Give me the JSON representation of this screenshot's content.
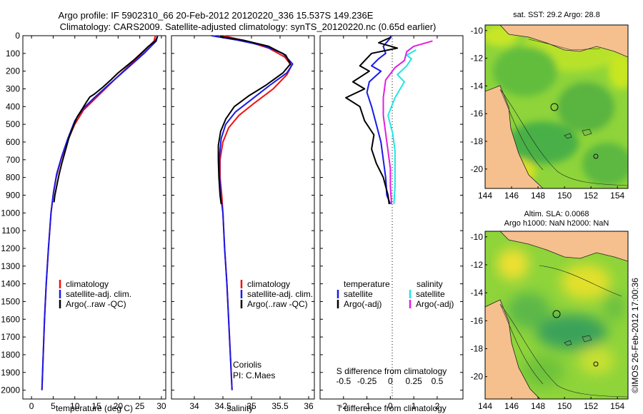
{
  "title": {
    "line1": "Argo profile: IF 5902310_66 20-Feb-2012 20120220_336 15.537S 149.236E",
    "line2": "Climatology: CARS2009. Satellite-adjusted climatology: synTS_20120220.nc (0.65d earlier)"
  },
  "colors": {
    "climatology": "#e11",
    "satellite": "#1a1ae6",
    "argo": "#000000",
    "sat_salinity": "#22e6e6",
    "argo_salinity": "#e21ee2",
    "land": "#f5c08e"
  },
  "chart_data": [
    {
      "id": "temperature",
      "type": "line",
      "xlabel": "temperature (deg C)",
      "ylabel": "",
      "xlim": [
        -2,
        31
      ],
      "ylim": [
        2050,
        0
      ],
      "xticks": [
        "0",
        "5",
        "10",
        "15",
        "20",
        "25",
        "30"
      ],
      "yticks": [
        "0",
        "100",
        "200",
        "300",
        "400",
        "500",
        "600",
        "700",
        "800",
        "900",
        "1000",
        "1100",
        "1200",
        "1300",
        "1400",
        "1500",
        "1600",
        "1700",
        "1800",
        "1900",
        "2000"
      ],
      "legend": [
        "climatology",
        "satellite-adj. clim.",
        "Argo(..raw -QC)"
      ],
      "series": [
        {
          "name": "climatology",
          "color": "#e11",
          "points": [
            [
              28.6,
              0
            ],
            [
              28.3,
              30
            ],
            [
              25.5,
              100
            ],
            [
              22.5,
              170
            ],
            [
              19.5,
              240
            ],
            [
              17,
              300
            ],
            [
              14.5,
              360
            ],
            [
              12,
              420
            ],
            [
              10,
              500
            ],
            [
              8.2,
              600
            ],
            [
              6.8,
              700
            ],
            [
              5.7,
              800
            ],
            [
              5,
              900
            ],
            [
              4.5,
              1000
            ],
            [
              3.9,
              1200
            ],
            [
              3.4,
              1400
            ],
            [
              3,
              1600
            ],
            [
              2.7,
              1800
            ],
            [
              2.4,
              2000
            ]
          ]
        },
        {
          "name": "satellite",
          "color": "#1a1ae6",
          "points": [
            [
              29.1,
              0
            ],
            [
              28.8,
              30
            ],
            [
              26,
              100
            ],
            [
              23,
              165
            ],
            [
              20,
              230
            ],
            [
              17.2,
              290
            ],
            [
              14.5,
              350
            ],
            [
              12,
              410
            ],
            [
              10,
              480
            ],
            [
              8.4,
              580
            ],
            [
              7,
              680
            ],
            [
              5.8,
              780
            ],
            [
              5.1,
              880
            ],
            [
              4.5,
              1000
            ],
            [
              3.9,
              1200
            ],
            [
              3.4,
              1400
            ],
            [
              3,
              1600
            ],
            [
              2.7,
              1800
            ],
            [
              2.4,
              2000
            ]
          ]
        },
        {
          "name": "Argo",
          "color": "#000000",
          "points": [
            [
              29.1,
              5
            ],
            [
              28.6,
              30
            ],
            [
              27,
              60
            ],
            [
              25.5,
              95
            ],
            [
              23.5,
              140
            ],
            [
              21.5,
              180
            ],
            [
              20,
              210
            ],
            [
              18.3,
              250
            ],
            [
              16.5,
              290
            ],
            [
              14.5,
              330
            ],
            [
              13.5,
              345
            ],
            [
              12.8,
              370
            ],
            [
              11.8,
              410
            ],
            [
              10.5,
              460
            ],
            [
              9.5,
              520
            ],
            [
              8.6,
              580
            ],
            [
              7.8,
              650
            ],
            [
              7,
              720
            ],
            [
              6.3,
              790
            ],
            [
              5.8,
              850
            ],
            [
              5.4,
              900
            ],
            [
              5.2,
              940
            ]
          ]
        }
      ]
    },
    {
      "id": "salinity",
      "type": "line",
      "xlabel": "salinity",
      "ylabel": "",
      "xlim": [
        33.6,
        36.1
      ],
      "ylim": [
        2050,
        0
      ],
      "xticks": [
        "34",
        "34.5",
        "35",
        "35.5",
        "36"
      ],
      "legend": [
        "climatology",
        "satellite-adj. clim.",
        "Argo(..raw -QC)"
      ],
      "annotations": [
        "Coriolis",
        "PI: C.Maes"
      ],
      "series": [
        {
          "name": "climatology",
          "color": "#e11",
          "points": [
            [
              34.5,
              0
            ],
            [
              34.9,
              30
            ],
            [
              35.3,
              70
            ],
            [
              35.58,
              120
            ],
            [
              35.7,
              170
            ],
            [
              35.62,
              220
            ],
            [
              35.38,
              300
            ],
            [
              35.05,
              380
            ],
            [
              34.78,
              450
            ],
            [
              34.6,
              520
            ],
            [
              34.5,
              600
            ],
            [
              34.45,
              700
            ],
            [
              34.45,
              800
            ],
            [
              34.48,
              900
            ],
            [
              34.5,
              1000
            ],
            [
              34.53,
              1200
            ],
            [
              34.57,
              1400
            ],
            [
              34.6,
              1600
            ],
            [
              34.63,
              1800
            ],
            [
              34.66,
              2000
            ]
          ]
        },
        {
          "name": "satellite",
          "color": "#1a1ae6",
          "points": [
            [
              34.3,
              0
            ],
            [
              34.75,
              25
            ],
            [
              35.2,
              55
            ],
            [
              35.55,
              100
            ],
            [
              35.72,
              160
            ],
            [
              35.62,
              210
            ],
            [
              35.32,
              280
            ],
            [
              35,
              360
            ],
            [
              34.72,
              430
            ],
            [
              34.55,
              500
            ],
            [
              34.47,
              580
            ],
            [
              34.44,
              680
            ],
            [
              34.44,
              780
            ],
            [
              34.46,
              900
            ],
            [
              34.5,
              1000
            ],
            [
              34.53,
              1200
            ],
            [
              34.57,
              1400
            ],
            [
              34.6,
              1600
            ],
            [
              34.63,
              1800
            ],
            [
              34.66,
              2000
            ]
          ]
        },
        {
          "name": "Argo",
          "color": "#000000",
          "points": [
            [
              34.45,
              5
            ],
            [
              34.85,
              25
            ],
            [
              35.3,
              60
            ],
            [
              35.6,
              110
            ],
            [
              35.68,
              160
            ],
            [
              35.55,
              210
            ],
            [
              35.25,
              280
            ],
            [
              34.95,
              340
            ],
            [
              34.7,
              400
            ],
            [
              34.55,
              470
            ],
            [
              34.46,
              540
            ],
            [
              34.42,
              620
            ],
            [
              34.42,
              700
            ],
            [
              34.43,
              800
            ],
            [
              34.45,
              900
            ],
            [
              34.47,
              950
            ]
          ]
        }
      ]
    },
    {
      "id": "difference",
      "type": "line",
      "xlabel": "T difference from climatology",
      "xlabel_top": "S difference from climatology",
      "xlim": [
        -3,
        3.1
      ],
      "ylim": [
        2050,
        0
      ],
      "xticks": [
        "-2",
        "-1",
        "0",
        "1",
        "2"
      ],
      "xticks_top": [
        "-0.5",
        "-0.25",
        "0",
        "0.25",
        "0.5"
      ],
      "legend_titles": [
        "temperature",
        "salinity"
      ],
      "legend": [
        "satellite",
        "Argo(-adj)",
        "satellite",
        "Argo(-adj)"
      ],
      "series": [
        {
          "name": "T satellite",
          "color": "#1a1ae6",
          "points": [
            [
              0.05,
              5
            ],
            [
              -0.3,
              60
            ],
            [
              -0.2,
              100
            ],
            [
              -0.5,
              130
            ],
            [
              -0.8,
              170
            ],
            [
              -0.4,
              200
            ],
            [
              -0.9,
              260
            ],
            [
              -1,
              320
            ],
            [
              -0.8,
              400
            ],
            [
              -0.6,
              500
            ],
            [
              -0.4,
              600
            ],
            [
              -0.3,
              700
            ],
            [
              -0.2,
              800
            ],
            [
              -0.15,
              900
            ],
            [
              0,
              950
            ]
          ]
        },
        {
          "name": "T Argo",
          "color": "#000000",
          "points": [
            [
              0,
              10
            ],
            [
              -0.5,
              40
            ],
            [
              0.3,
              70
            ],
            [
              -0.8,
              100
            ],
            [
              -1.3,
              170
            ],
            [
              -0.9,
              200
            ],
            [
              -1.6,
              260
            ],
            [
              -1.1,
              300
            ],
            [
              -1.9,
              350
            ],
            [
              -1.3,
              400
            ],
            [
              -1.1,
              480
            ],
            [
              -0.7,
              560
            ],
            [
              -0.8,
              640
            ],
            [
              -0.6,
              720
            ],
            [
              -0.3,
              800
            ],
            [
              -0.1,
              900
            ],
            [
              -0.05,
              950
            ]
          ]
        },
        {
          "name": "S satellite",
          "color": "#22e6e6",
          "points": [
            [
              1.1,
              80
            ],
            [
              0.7,
              110
            ],
            [
              0.9,
              130
            ],
            [
              0.7,
              170
            ],
            [
              0.3,
              220
            ],
            [
              0.6,
              260
            ],
            [
              0.2,
              350
            ],
            [
              -0.1,
              450
            ],
            [
              0.1,
              550
            ],
            [
              0.2,
              650
            ],
            [
              0.2,
              750
            ],
            [
              0.2,
              850
            ],
            [
              0.15,
              950
            ]
          ]
        },
        {
          "name": "S Argo",
          "color": "#e21ee2",
          "points": [
            [
              1.8,
              30
            ],
            [
              1,
              60
            ],
            [
              0.7,
              90
            ],
            [
              0.6,
              140
            ],
            [
              0.2,
              180
            ],
            [
              -0.2,
              250
            ],
            [
              -0.3,
              350
            ],
            [
              -0.3,
              450
            ],
            [
              -0.2,
              550
            ],
            [
              -0.1,
              650
            ],
            [
              0,
              750
            ],
            [
              0,
              850
            ],
            [
              0.05,
              950
            ]
          ]
        }
      ]
    }
  ],
  "maps": {
    "sst": {
      "title": "sat. SST: 29.2  Argo: 28.8",
      "xticks": [
        "144",
        "146",
        "148",
        "150",
        "152",
        "154"
      ],
      "yticks": [
        "-10",
        "-12",
        "-14",
        "-16",
        "-18",
        "-20"
      ]
    },
    "sla": {
      "title1": "Altim. SLA: 0.0068",
      "title2": "Argo h1000: NaN  h2000: NaN",
      "xticks": [
        "144",
        "146",
        "148",
        "150",
        "152",
        "154"
      ],
      "yticks": [
        "-10",
        "-12",
        "-14",
        "-16",
        "-18",
        "-20"
      ]
    }
  },
  "credit": "©IMOS 26-Feb-2012 17:00:36"
}
